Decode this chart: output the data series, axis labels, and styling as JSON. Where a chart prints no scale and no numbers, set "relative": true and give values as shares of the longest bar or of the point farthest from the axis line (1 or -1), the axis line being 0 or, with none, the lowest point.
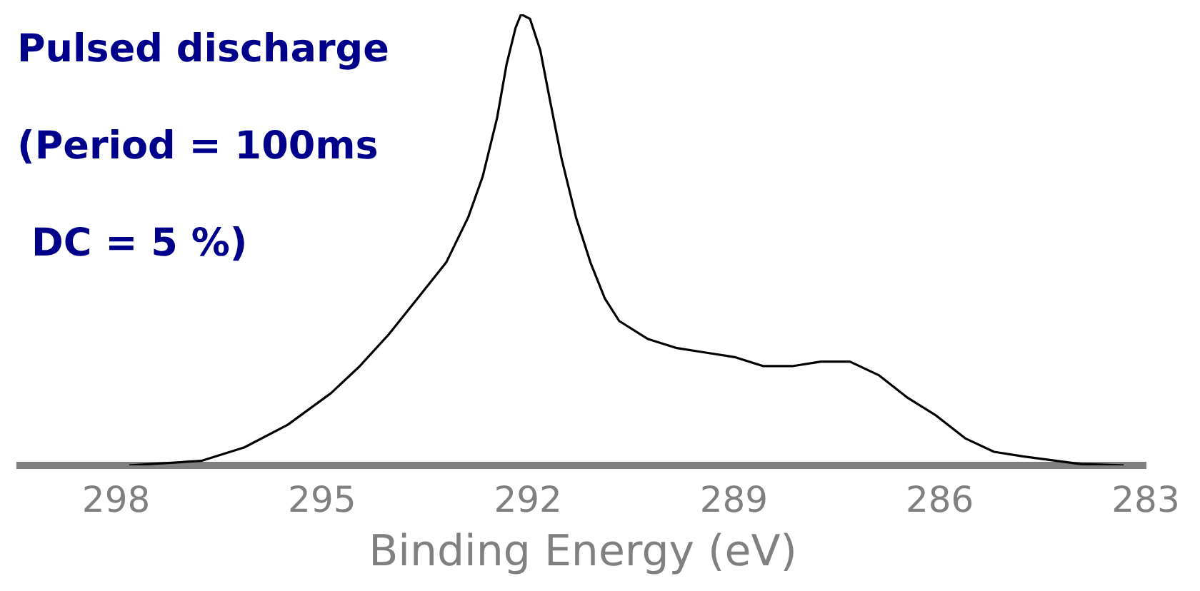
{
  "chart_data": {
    "type": "line",
    "relative": true,
    "xlabel": "Binding Energy (eV)",
    "annotations": [
      "Pulsed discharge",
      "(Period = 100ms",
      "DC = 5 %)"
    ],
    "xlim": [
      299.4,
      283
    ],
    "xticks": [
      298,
      295,
      292,
      289,
      286,
      283
    ],
    "grid": false,
    "legend": false,
    "marker": "none",
    "line_style": "solid",
    "series": [
      {
        "color": "#000000",
        "x": [
          297.81,
          296.76,
          296.13,
          295.5,
          294.87,
          294.45,
          294.03,
          293.61,
          293.19,
          292.87,
          292.66,
          292.45,
          292.31,
          292.18,
          292.1,
          291.97,
          291.82,
          291.68,
          291.51,
          291.3,
          291.09,
          290.88,
          290.67,
          290.25,
          289.83,
          289.41,
          288.99,
          288.57,
          288.15,
          287.73,
          287.31,
          286.89,
          286.47,
          286.05,
          285.63,
          285.21,
          284.79,
          283.95,
          283.32
        ],
        "values": [
          0,
          0.01,
          0.04,
          0.09,
          0.16,
          0.22,
          0.29,
          0.37,
          0.45,
          0.55,
          0.64,
          0.77,
          0.89,
          0.97,
          1,
          0.99,
          0.92,
          0.81,
          0.68,
          0.55,
          0.45,
          0.37,
          0.32,
          0.28,
          0.26,
          0.25,
          0.24,
          0.22,
          0.22,
          0.23,
          0.23,
          0.2,
          0.15,
          0.11,
          0.06,
          0.03,
          0.02,
          0.003,
          0
        ]
      }
    ]
  }
}
